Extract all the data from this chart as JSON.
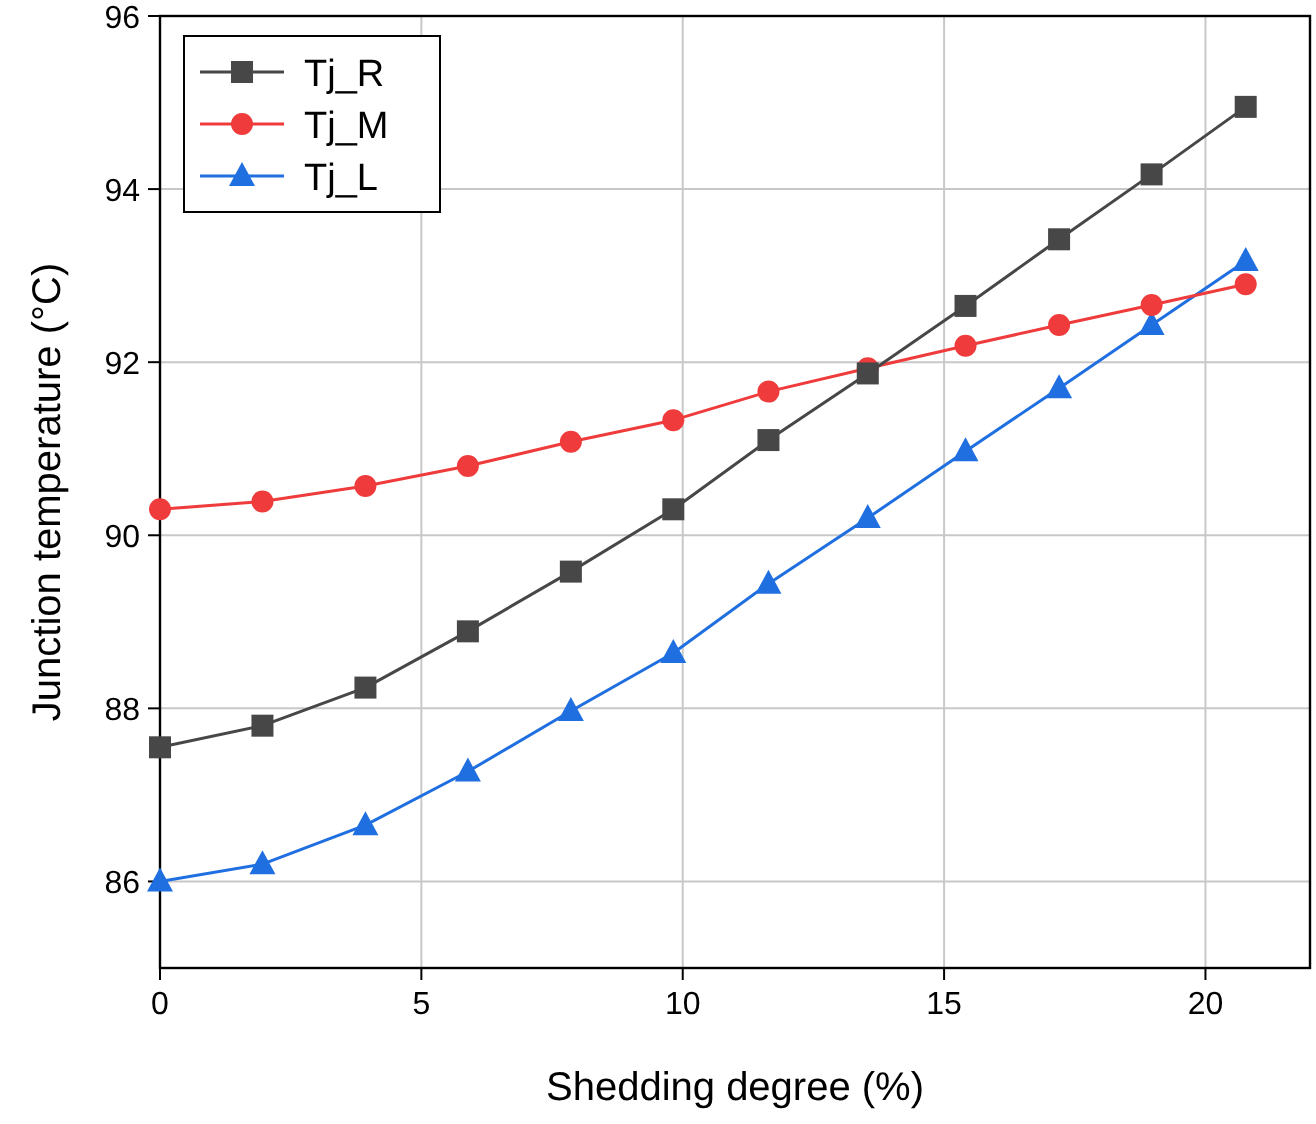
{
  "chart_data": {
    "type": "line",
    "xlabel": "Shedding degree (%)",
    "ylabel": "Junction temperature (°C)",
    "x": [
      0,
      1.96,
      3.93,
      5.89,
      7.86,
      9.82,
      11.64,
      13.54,
      15.41,
      17.2,
      18.97,
      20.77
    ],
    "series": [
      {
        "name": "Tj_R",
        "color": "#474747",
        "marker": "square",
        "values": [
          87.55,
          87.8,
          88.24,
          88.89,
          89.58,
          90.3,
          91.1,
          91.87,
          92.65,
          93.42,
          94.17,
          94.95
        ]
      },
      {
        "name": "Tj_M",
        "color": "#ef3b3b",
        "marker": "circle",
        "values": [
          90.3,
          90.39,
          90.57,
          90.8,
          91.08,
          91.33,
          91.66,
          91.93,
          92.19,
          92.43,
          92.66,
          92.9
        ]
      },
      {
        "name": "Tj_L",
        "color": "#1f6fe0",
        "marker": "triangle",
        "values": [
          86.0,
          86.2,
          86.65,
          87.27,
          87.97,
          88.64,
          89.44,
          90.2,
          90.97,
          91.7,
          92.43,
          93.17
        ]
      }
    ],
    "xlim": [
      0,
      22
    ],
    "xticks": [
      0,
      5,
      10,
      15,
      20
    ],
    "ylim": [
      85,
      96
    ],
    "yticks": [
      86,
      88,
      90,
      92,
      94,
      96
    ],
    "grid": true,
    "legend": "top left",
    "line_style": "solid"
  }
}
